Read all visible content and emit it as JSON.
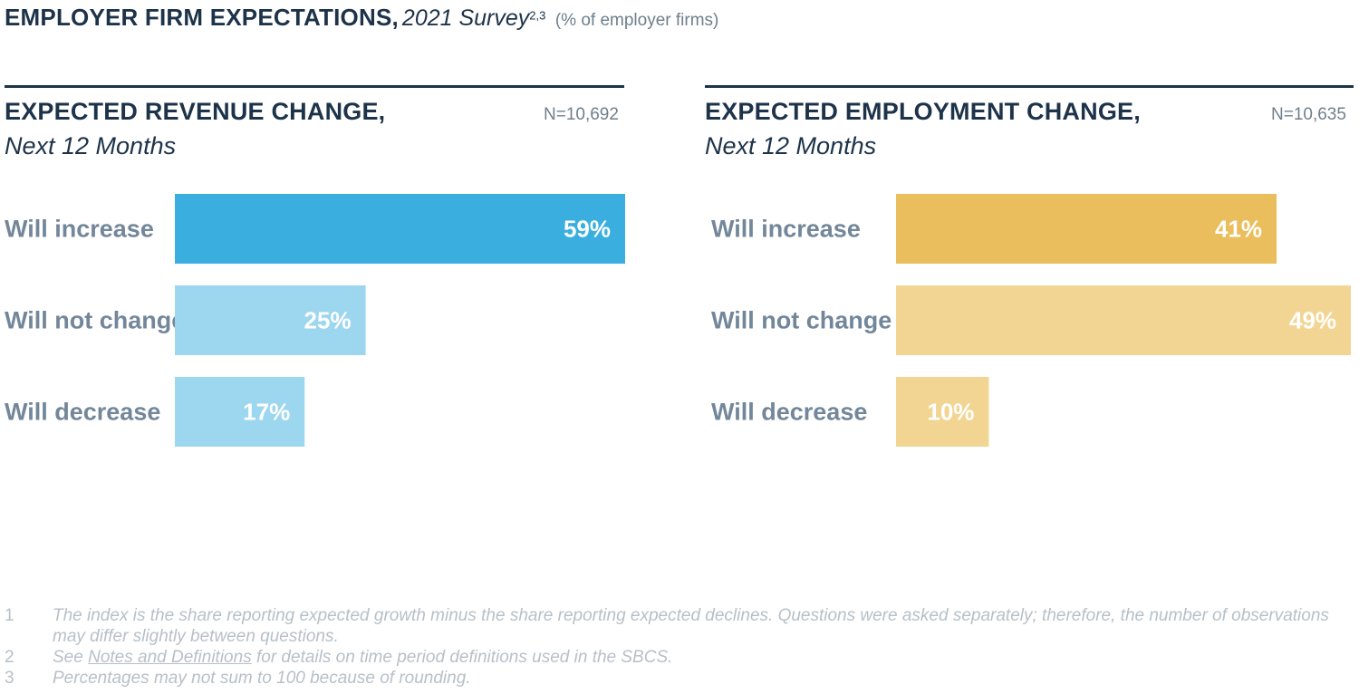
{
  "header": {
    "title": "EMPLOYER FIRM EXPECTATIONS,",
    "survey": "2021 Survey",
    "superscript": "2,3",
    "unit": "(% of employer firms)"
  },
  "chart_data": [
    {
      "type": "bar",
      "orientation": "horizontal",
      "title": "EXPECTED REVENUE CHANGE,",
      "subtitle": "Next 12 Months",
      "n_label": "N=10,692",
      "categories": [
        "Will increase",
        "Will not change",
        "Will decrease"
      ],
      "values": [
        59,
        25,
        17
      ],
      "value_labels": [
        "59%",
        "25%",
        "17%"
      ],
      "colors": [
        "#3aaede",
        "#9dd6ef",
        "#9dd6ef"
      ],
      "xlim": [
        0,
        59
      ]
    },
    {
      "type": "bar",
      "orientation": "horizontal",
      "title": "EXPECTED EMPLOYMENT CHANGE,",
      "subtitle": "Next 12 Months",
      "n_label": "N=10,635",
      "categories": [
        "Will increase",
        "Will not change",
        "Will decrease"
      ],
      "values": [
        41,
        49,
        10
      ],
      "value_labels": [
        "41%",
        "49%",
        "10%"
      ],
      "colors": [
        "#eabe5c",
        "#f2d592",
        "#f2d592"
      ],
      "xlim": [
        0,
        49
      ]
    }
  ],
  "footnotes": [
    {
      "num": "1",
      "text": "The index is the share reporting expected growth minus the share reporting expected declines. Questions were asked separately; therefore, the number of observations may differ slightly between questions."
    },
    {
      "num": "2",
      "pre": "See ",
      "link": "Notes and Definitions",
      "post": " for details on time period definitions used in the SBCS."
    },
    {
      "num": "3",
      "text": "Percentages may not sum to 100 because of rounding."
    }
  ]
}
